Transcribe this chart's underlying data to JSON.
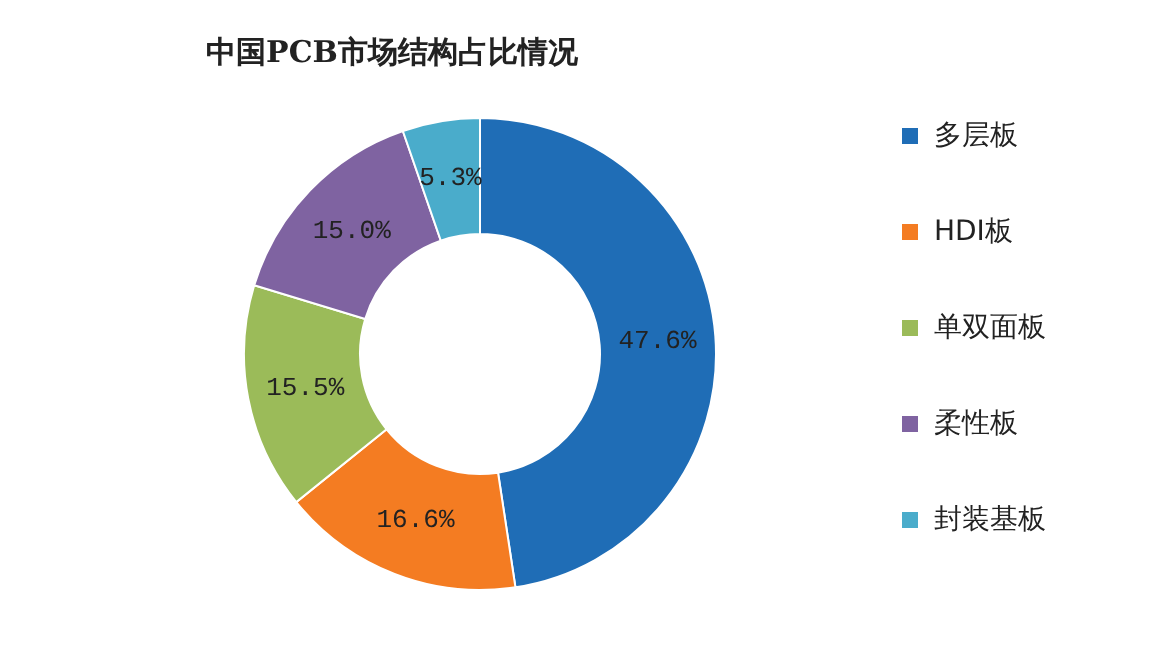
{
  "chart_data": {
    "type": "donut",
    "title": "中国PCB市场结构占比情况",
    "categories": [
      "多层板",
      "HDI板",
      "单双面板",
      "柔性板",
      "封装基板"
    ],
    "values": [
      47.6,
      16.6,
      15.5,
      15.0,
      5.3
    ],
    "value_labels": [
      "47.6%",
      "16.6%",
      "15.5%",
      "15.0%",
      "5.3%"
    ],
    "colors": [
      "#1f6db6",
      "#f47c22",
      "#9bbb59",
      "#7f63a1",
      "#4aaccb"
    ],
    "legend": "right"
  }
}
